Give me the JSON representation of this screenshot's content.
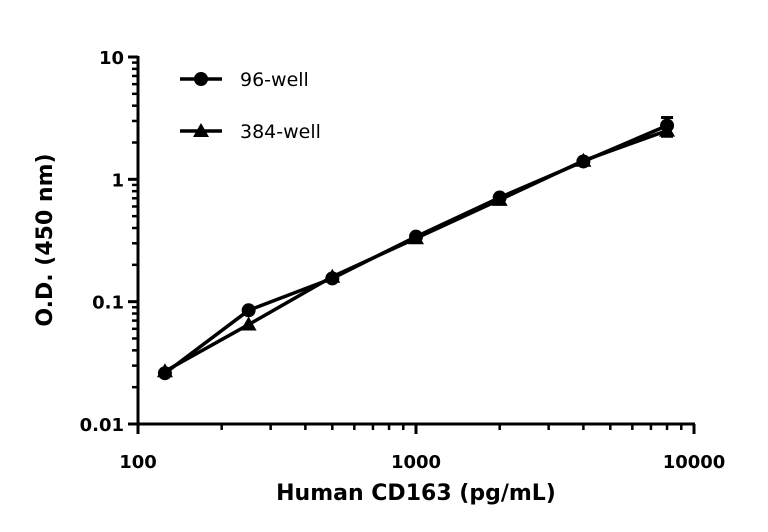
{
  "chart_data": {
    "type": "line",
    "title": "",
    "xlabel": "Human CD163 (pg/mL)",
    "ylabel": "O.D. (450 nm)",
    "xscale": "log",
    "yscale": "log",
    "xlim": [
      100,
      10000
    ],
    "ylim": [
      0.01,
      10
    ],
    "x_ticks": [
      "100",
      "1000",
      "10000"
    ],
    "y_ticks": [
      "10",
      "1",
      "0.1",
      "0.01"
    ],
    "grid": false,
    "legend_position": "top-left",
    "x": [
      125,
      250,
      500,
      1000,
      2000,
      4000,
      8000
    ],
    "series": [
      {
        "name": "96-well",
        "marker": "circle",
        "values": [
          0.026,
          0.085,
          0.155,
          0.34,
          0.71,
          1.4,
          2.75
        ],
        "error_last": 0.45
      },
      {
        "name": "384-well",
        "marker": "triangle",
        "values": [
          0.027,
          0.065,
          0.16,
          0.33,
          0.68,
          1.42,
          2.5
        ],
        "error_last": 0.25
      }
    ],
    "color": "#000000"
  }
}
